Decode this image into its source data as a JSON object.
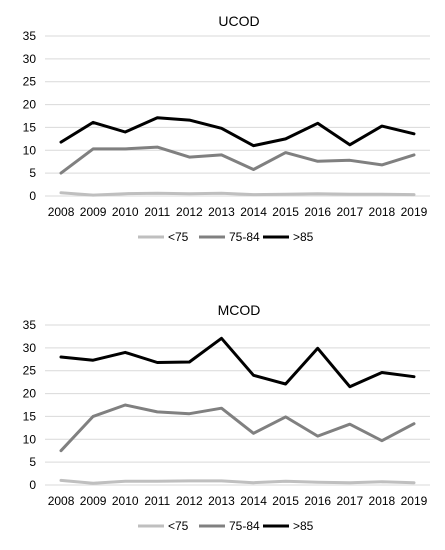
{
  "chart_data": [
    {
      "type": "line",
      "title": "UCOD",
      "xlabel": "",
      "ylabel": "",
      "ylim": [
        0,
        35
      ],
      "y_ticks": [
        "0",
        "5",
        "10",
        "15",
        "20",
        "25",
        "30",
        "35"
      ],
      "categories": [
        "2008",
        "2009",
        "2010",
        "2011",
        "2012",
        "2013",
        "2014",
        "2015",
        "2016",
        "2017",
        "2018",
        "2019"
      ],
      "grid": true,
      "legend_position": "bottom",
      "series": [
        {
          "name": "<75",
          "color": "#bfbfbf",
          "values": [
            0.7,
            0.2,
            0.5,
            0.6,
            0.5,
            0.6,
            0.3,
            0.4,
            0.5,
            0.4,
            0.4,
            0.3
          ]
        },
        {
          "name": "75-84",
          "color": "#808080",
          "values": [
            5.0,
            10.3,
            10.3,
            10.7,
            8.5,
            9.0,
            5.8,
            9.5,
            7.6,
            7.8,
            6.8,
            9.0
          ]
        },
        {
          "name": ">85",
          "color": "#000000",
          "values": [
            11.8,
            16.1,
            14.0,
            17.1,
            16.6,
            14.8,
            11.0,
            12.5,
            15.9,
            11.2,
            15.3,
            13.6
          ]
        }
      ]
    },
    {
      "type": "line",
      "title": "MCOD",
      "xlabel": "",
      "ylabel": "",
      "ylim": [
        0,
        35
      ],
      "y_ticks": [
        "0",
        "5",
        "10",
        "15",
        "20",
        "25",
        "30",
        "35"
      ],
      "categories": [
        "2008",
        "2009",
        "2010",
        "2011",
        "2012",
        "2013",
        "2014",
        "2015",
        "2016",
        "2017",
        "2018",
        "2019"
      ],
      "grid": true,
      "legend_position": "bottom",
      "series": [
        {
          "name": "<75",
          "color": "#bfbfbf",
          "values": [
            1.0,
            0.4,
            0.8,
            0.8,
            0.9,
            0.9,
            0.5,
            0.8,
            0.6,
            0.5,
            0.7,
            0.5
          ]
        },
        {
          "name": "75-84",
          "color": "#808080",
          "values": [
            7.5,
            15.0,
            17.5,
            16.0,
            15.6,
            16.8,
            11.3,
            14.9,
            10.7,
            13.3,
            9.7,
            13.4
          ]
        },
        {
          "name": ">85",
          "color": "#000000",
          "values": [
            28.0,
            27.3,
            29.0,
            26.8,
            26.9,
            32.1,
            24.0,
            22.1,
            29.9,
            21.5,
            24.6,
            23.7
          ]
        }
      ]
    }
  ]
}
